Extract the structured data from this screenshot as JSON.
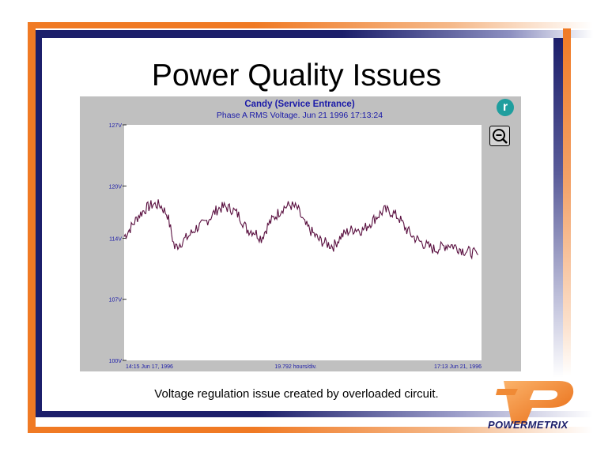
{
  "slide": {
    "title": "Power Quality Issues",
    "caption": "Voltage regulation issue created by overloaded circuit.",
    "logo_text": "POWERMETRIX"
  },
  "chart_panel": {
    "badge_letter": "r",
    "zoom_icon": "zoom-out-icon"
  },
  "chart_data": {
    "type": "line",
    "title": "Candy (Service Entrance)",
    "subtitle": "Phase A RMS Voltage. Jun 21 1996 17:13:24",
    "y_ticks": [
      "127V",
      "120V",
      "114V",
      "107V",
      "100V"
    ],
    "y_tick_values": [
      127,
      120,
      114,
      107,
      100
    ],
    "ylim": [
      100,
      127
    ],
    "x_tick_labels": [
      "14:15 Jun 17, 1996",
      "19.792 hours/div.",
      "17:13 Jun 21, 1996"
    ],
    "x_range_hours": [
      0,
      98.97
    ],
    "grid": false,
    "series": [
      {
        "color": "#5a1040",
        "x": [
          0,
          2,
          4,
          6,
          8,
          10,
          12,
          14,
          16,
          18,
          20,
          22,
          24,
          26,
          28,
          30,
          32,
          34,
          36,
          38,
          40,
          42,
          44,
          46,
          48,
          50,
          52,
          54,
          56,
          58,
          60,
          62,
          64,
          66,
          68,
          70,
          72,
          74,
          76,
          78,
          80,
          82,
          84,
          86,
          88,
          90,
          92,
          94,
          96,
          98
        ],
        "y": [
          114.2,
          115.3,
          116.6,
          117.4,
          117.9,
          117.8,
          116.7,
          112.9,
          113.6,
          114.3,
          115.2,
          115.6,
          116.5,
          117.4,
          117.6,
          117.3,
          116.5,
          115.0,
          114.8,
          114.0,
          115.6,
          116.6,
          117.5,
          117.8,
          117.4,
          115.6,
          114.7,
          113.8,
          113.4,
          113.1,
          114.2,
          114.8,
          115.1,
          114.9,
          115.7,
          116.5,
          117.2,
          117.0,
          116.4,
          115.1,
          114.2,
          113.6,
          113.1,
          112.7,
          113.0,
          113.3,
          113.0,
          112.6,
          112.4,
          112.1
        ]
      }
    ]
  }
}
